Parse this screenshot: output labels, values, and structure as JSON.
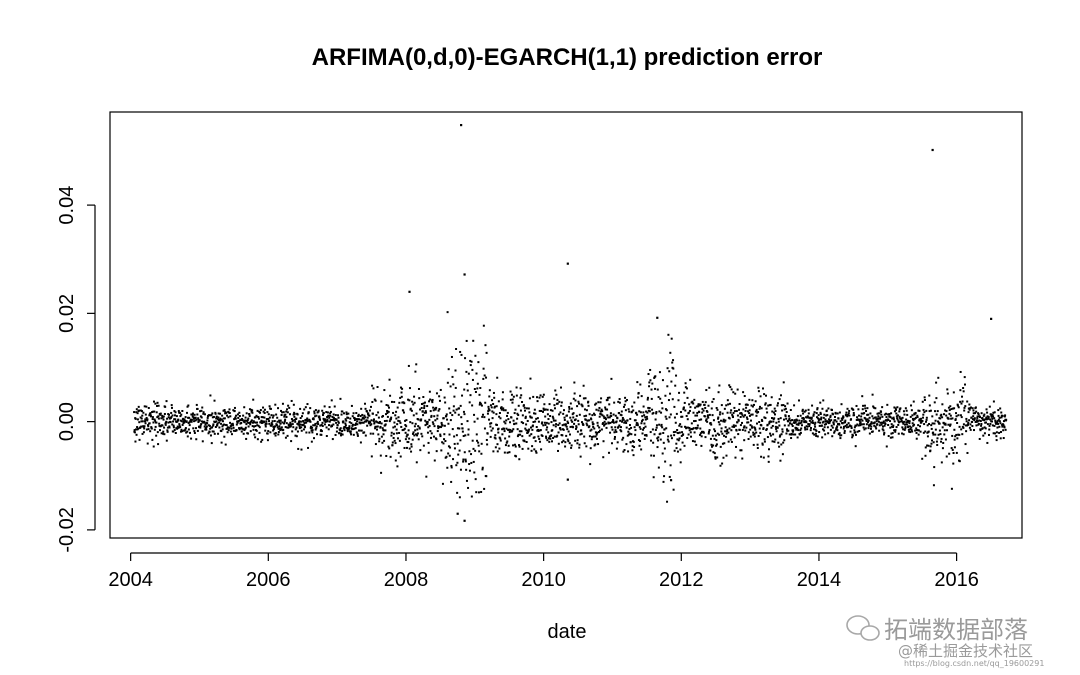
{
  "chart_data": {
    "type": "scatter",
    "title": "ARFIMA(0,d,0)-EGARCH(1,1) prediction error",
    "xlabel": "date",
    "ylabel": "",
    "xlim": [
      2003.7,
      2016.95
    ],
    "ylim": [
      -0.0215,
      0.0572
    ],
    "x_ticks": [
      "2004",
      "2006",
      "2008",
      "2010",
      "2012",
      "2014",
      "2016"
    ],
    "y_ticks": [
      "-0.02",
      "0.00",
      "0.02",
      "0.04"
    ],
    "x_range": [
      "2004-01",
      "2016-09"
    ],
    "grid": false,
    "point_color": "#000000",
    "n_points_approx": 3200,
    "notable_points": [
      {
        "x": 2008.8,
        "y": 0.0548
      },
      {
        "x": 2015.65,
        "y": 0.0502
      },
      {
        "x": 2010.35,
        "y": 0.0292
      },
      {
        "x": 2008.85,
        "y": 0.0272
      },
      {
        "x": 2008.05,
        "y": 0.024
      },
      {
        "x": 2016.5,
        "y": 0.019
      },
      {
        "x": 2011.65,
        "y": 0.0192
      },
      {
        "x": 2008.85,
        "y": -0.0183
      },
      {
        "x": 2008.75,
        "y": -0.017
      },
      {
        "x": 2011.85,
        "y": -0.0108
      },
      {
        "x": 2010.35,
        "y": -0.0107
      }
    ]
  },
  "watermark": {
    "line1": "拓端数据部落",
    "line2": "@稀土掘金技术社区",
    "url": "https://blog.csdn.net/qq_19600291"
  }
}
